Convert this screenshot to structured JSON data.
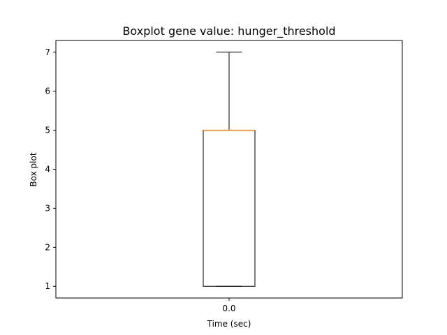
{
  "chart_data": {
    "type": "box",
    "title": "Boxplot gene value: hunger_threshold",
    "xlabel": "Time (sec)",
    "ylabel": "Box plot",
    "x_ticks": [
      "0.0"
    ],
    "y_ticks": [
      1,
      2,
      3,
      4,
      5,
      6,
      7
    ],
    "ylim": [
      0.7,
      7.3
    ],
    "boxes": [
      {
        "category": "0.0",
        "whisker_low": 1,
        "q1": 1,
        "median": 5,
        "q3": 5,
        "whisker_high": 7
      }
    ],
    "grid": false,
    "colors": {
      "box": "#000000",
      "median": "#ff7f0e",
      "axes": "#000000",
      "background": "#ffffff"
    }
  }
}
